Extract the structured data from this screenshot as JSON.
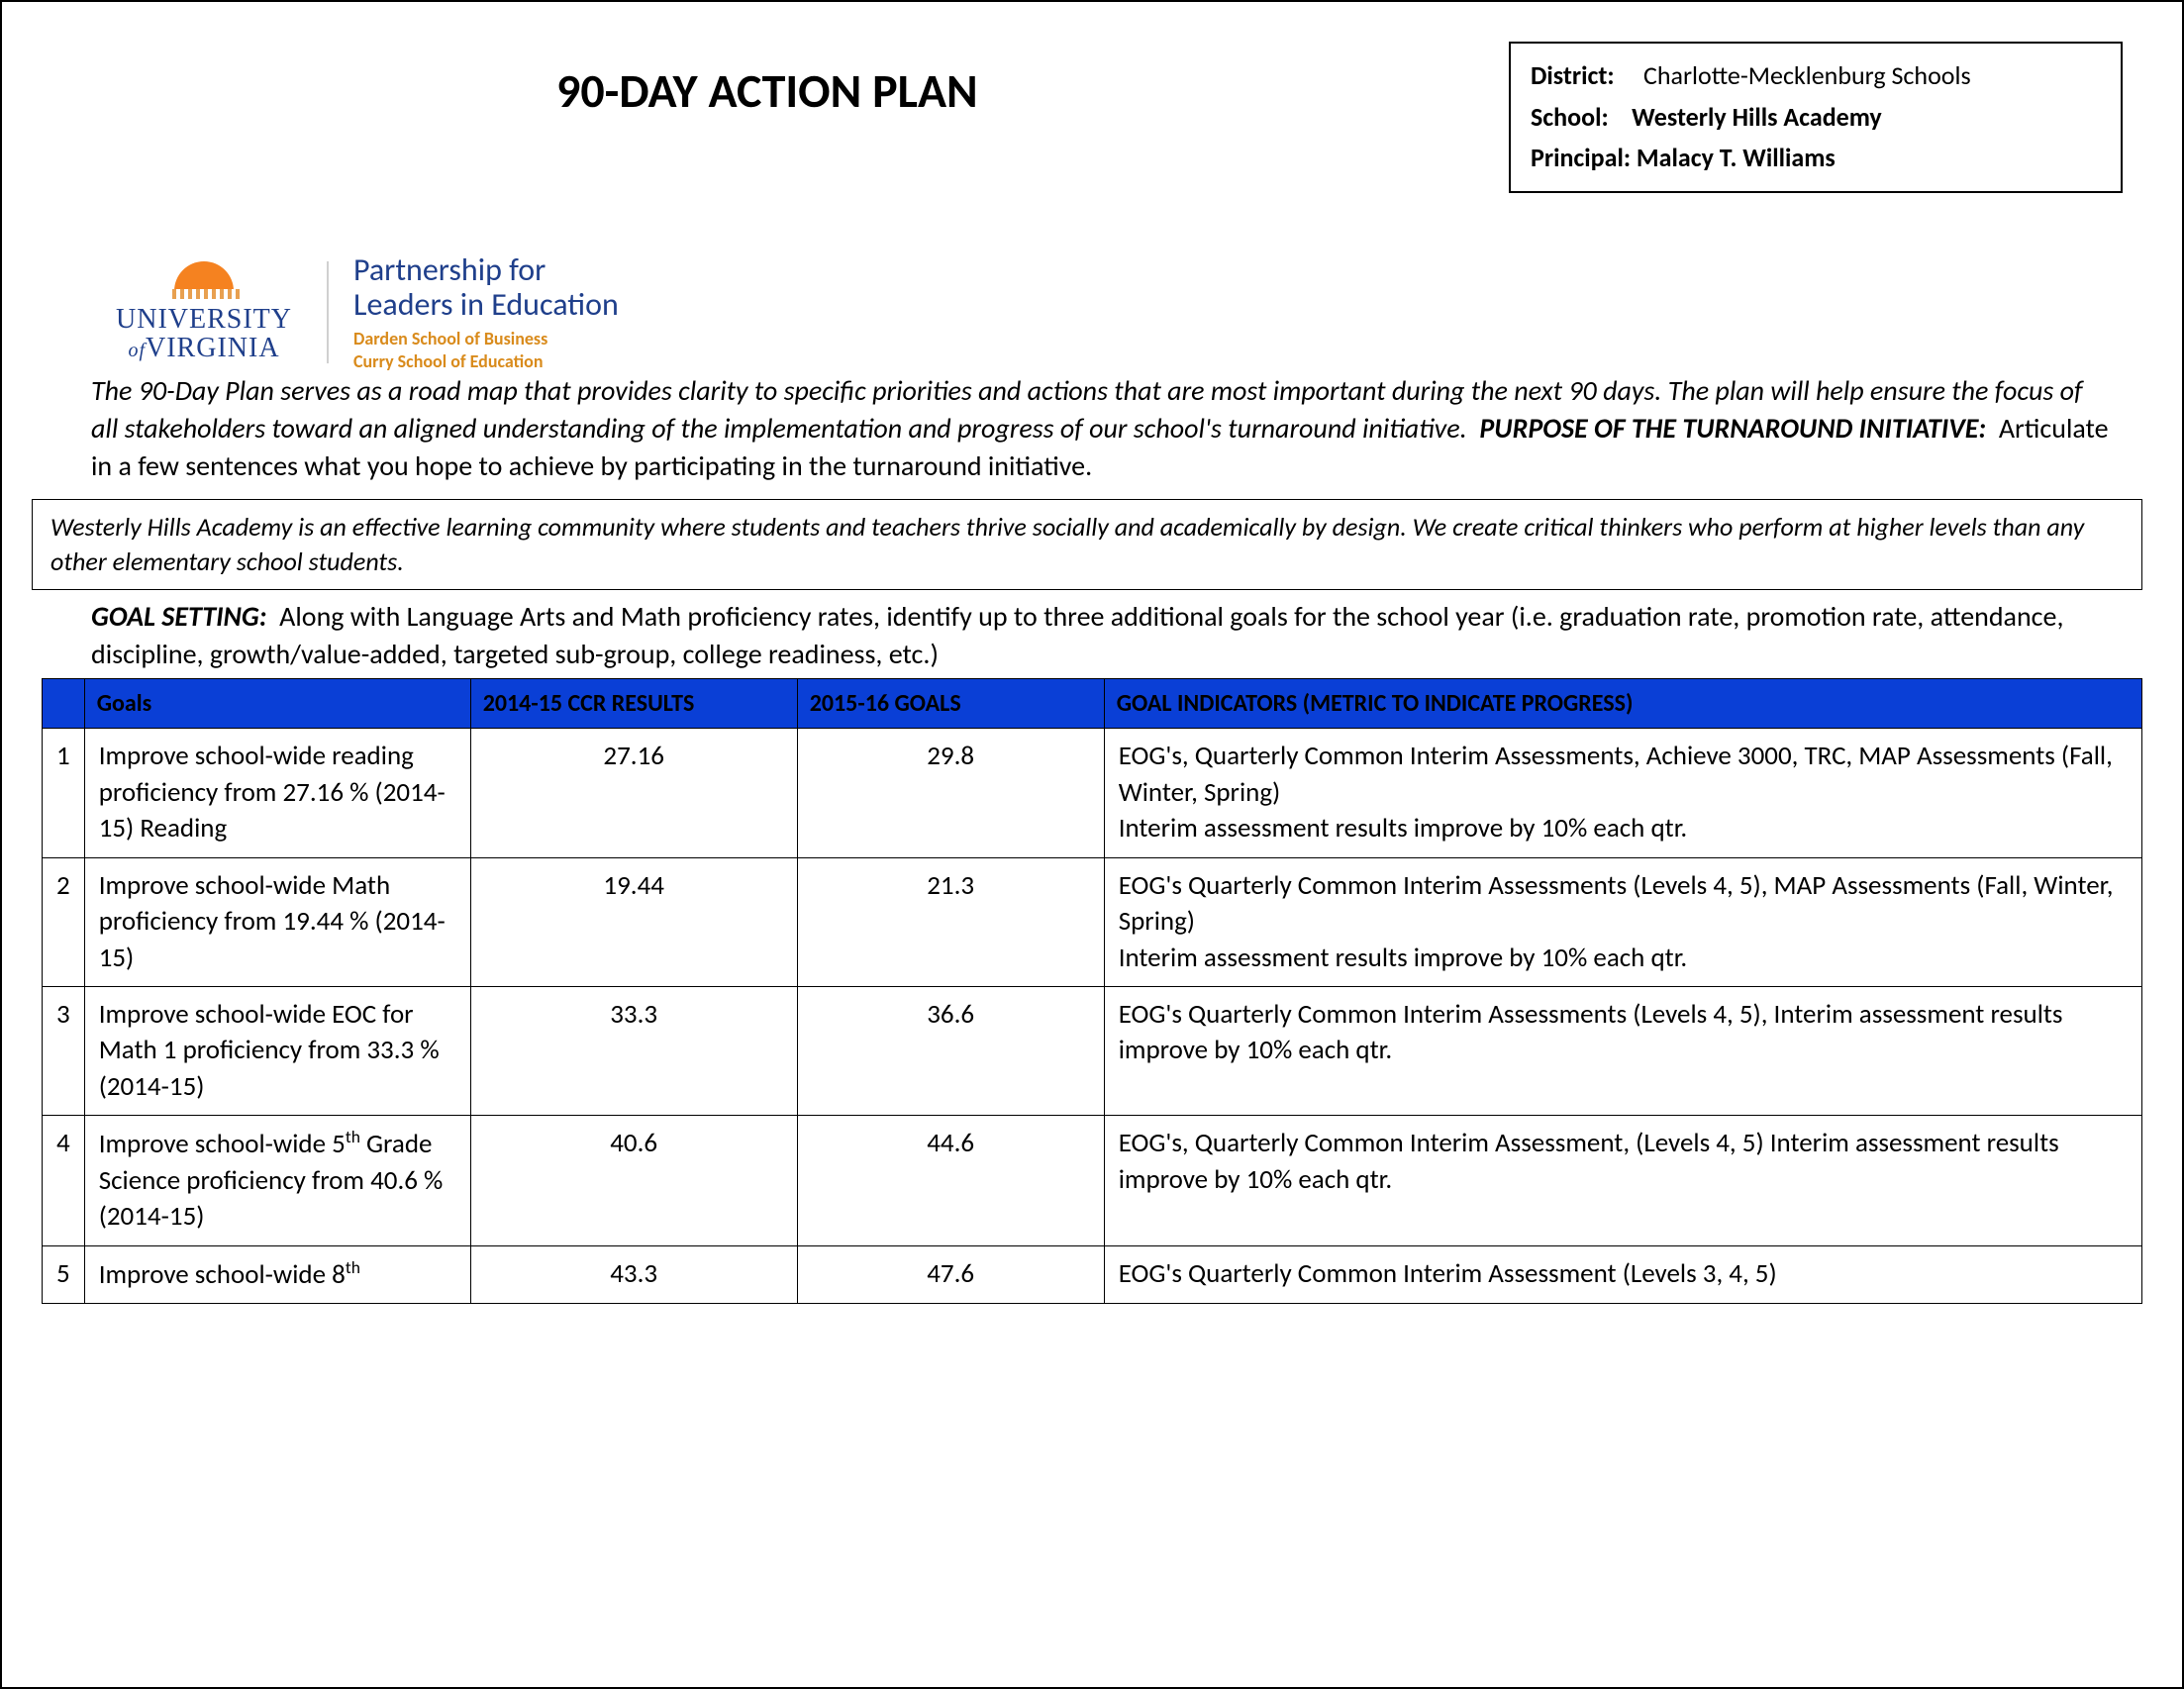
{
  "title": "90-DAY ACTION PLAN",
  "info": {
    "district_label": "District:",
    "district_value": "Charlotte-Mecklenburg Schools",
    "school_label": "School:",
    "school_value": "Westerly Hills Academy",
    "principal_label": "Principal:",
    "principal_value": "Malacy T. Williams"
  },
  "logo": {
    "uva_line1": "UNIVERSITY",
    "uva_of": "of",
    "uva_line2": "VIRGINIA",
    "ple_title_l1": "Partnership for",
    "ple_title_l2": "Leaders in Education",
    "ple_sub_l1": "Darden School of Business",
    "ple_sub_l2": "Curry School of Education"
  },
  "intro": {
    "text1": "The 90-Day Plan serves as a road map that provides clarity to specific priorities and actions that are most important during the next 90 days.  The plan will help ensure the focus of all stakeholders toward an aligned understanding of the implementation and progress of our school's turnaround initiative.",
    "purpose_label": "PURPOSE OF THE TURNAROUND INITIATIVE:",
    "purpose_text": "Articulate in a few sentences what you hope to achieve by participating in the turnaround initiative."
  },
  "purpose_box": "Westerly Hills Academy is an effective learning community where students and teachers thrive socially and academically by design.  We create critical thinkers who perform at higher levels than any other elementary school students.",
  "goal_setting": {
    "label": "GOAL SETTING:",
    "text": "Along with Language Arts and Math proficiency rates, identify up to three additional goals for the school year (i.e. graduation rate, promotion rate, attendance, discipline, growth/value-added, targeted sub-group, college readiness, etc.)"
  },
  "table": {
    "header_color": "#0a3fd6",
    "columns": [
      "",
      "Goals",
      "2014-15 CCR RESULTS",
      "2015-16 GOALS",
      "GOAL INDICATORS (METRIC TO INDICATE PROGRESS)"
    ],
    "rows": [
      {
        "n": "1",
        "goal": "Improve school-wide reading proficiency from 27.16 % (2014-15) Reading",
        "ccr": "27.16",
        "g16": "29.8",
        "ind": "EOG's, Quarterly Common Interim Assessments, Achieve 3000, TRC, MAP Assessments (Fall, Winter, Spring)\nInterim assessment results improve by 10% each qtr."
      },
      {
        "n": "2",
        "goal": "Improve school-wide Math proficiency from 19.44 % (2014-15)",
        "ccr": "19.44",
        "g16": "21.3",
        "ind": "EOG's Quarterly Common Interim  Assessments (Levels 4, 5), MAP Assessments (Fall, Winter, Spring)\nInterim assessment results improve by 10% each qtr."
      },
      {
        "n": "3",
        "goal": "Improve school-wide EOC for Math 1 proficiency from 33.3 % (2014-15)",
        "ccr": "33.3",
        "g16": "36.6",
        "ind": "EOG's Quarterly Common Interim  Assessments (Levels 4, 5), Interim assessment results improve by 10% each qtr."
      },
      {
        "n": "4",
        "goal_html": "Improve school-wide 5<sup>th</sup> Grade Science proficiency from  40.6 % (2014-15)",
        "ccr": "40.6",
        "g16": "44.6",
        "ind": "EOG's, Quarterly Common Interim Assessment, (Levels 4, 5) Interim assessment results improve by 10% each qtr."
      },
      {
        "n": "5",
        "goal_html": "Improve school-wide 8<sup>th</sup>",
        "ccr": "43.3",
        "g16": "47.6",
        "ind": "EOG's Quarterly Common Interim Assessment (Levels 3, 4, 5)"
      }
    ]
  }
}
